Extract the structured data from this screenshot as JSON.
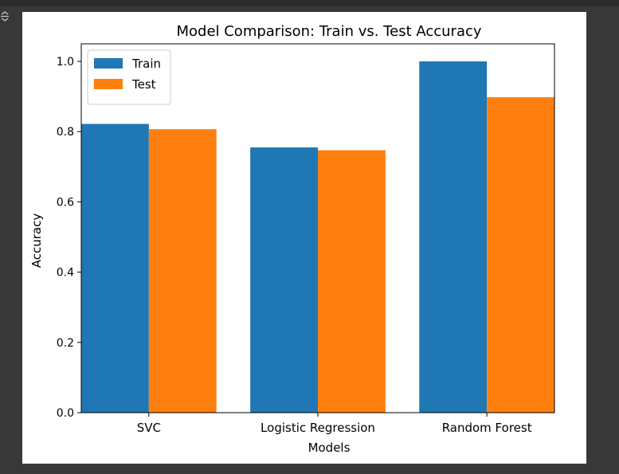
{
  "cell": {
    "output_icon": "output-toggle-icon"
  },
  "chart_data": {
    "type": "bar",
    "title": "Model Comparison: Train vs. Test Accuracy",
    "xlabel": "Models",
    "ylabel": "Accuracy",
    "categories": [
      "SVC",
      "Logistic Regression",
      "Random Forest"
    ],
    "series": [
      {
        "name": "Train",
        "color": "#1f77b4",
        "values": [
          0.822,
          0.755,
          1.0
        ]
      },
      {
        "name": "Test",
        "color": "#ff7f0e",
        "values": [
          0.807,
          0.747,
          0.898
        ]
      }
    ],
    "ylim": [
      0,
      1.05
    ],
    "yticks": [
      0.0,
      0.2,
      0.4,
      0.6,
      0.8,
      1.0
    ],
    "ytick_labels": [
      "0.0",
      "0.2",
      "0.4",
      "0.6",
      "0.8",
      "1.0"
    ],
    "grid": false,
    "legend": "top-left"
  }
}
